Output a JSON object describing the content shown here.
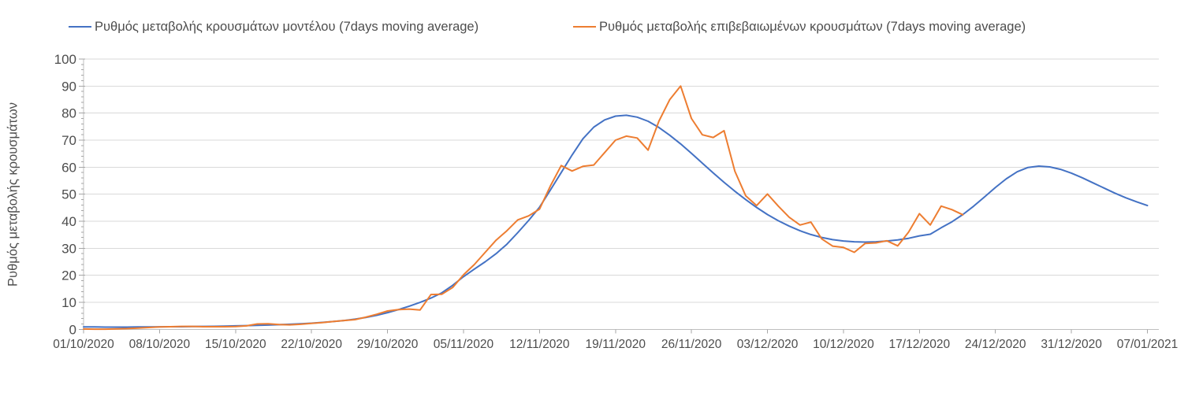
{
  "chart_data": {
    "type": "line",
    "title": "",
    "xlabel": "",
    "ylabel": "Ρυθμός μεταβολής κρουσμάτων",
    "ylim": [
      0,
      100
    ],
    "y_tick_step": 10,
    "y_minor_tick_step": 2,
    "grid": true,
    "legend_position": "top",
    "x_sampling": "daily",
    "x_start_date": "01/10/2020",
    "x_end_date": "07/01/2021",
    "x_tick_every_days": 7,
    "x_tick_labels": [
      "01/10/2020",
      "08/10/2020",
      "15/10/2020",
      "22/10/2020",
      "29/10/2020",
      "05/11/2020",
      "12/11/2020",
      "19/11/2020",
      "26/11/2020",
      "03/12/2020",
      "10/12/2020",
      "17/12/2020",
      "24/12/2020",
      "31/12/2020",
      "07/01/2021"
    ],
    "colors": {
      "gridline": "#d9d9d9",
      "axis": "#bfbfbf",
      "tick": "#a6a6a6",
      "label_text": "#4d4d4d"
    },
    "series": [
      {
        "name": "Ρυθμός μεταβολής κρουσμάτων μοντέλου (7days moving average)",
        "color": "#4472c4",
        "values": [
          0.9,
          0.9,
          0.85,
          0.85,
          0.85,
          0.9,
          0.9,
          0.95,
          1.0,
          1.0,
          1.05,
          1.1,
          1.15,
          1.2,
          1.3,
          1.4,
          1.5,
          1.6,
          1.75,
          1.9,
          2.1,
          2.3,
          2.6,
          2.9,
          3.3,
          3.8,
          4.4,
          5.2,
          6.2,
          7.3,
          8.6,
          10.0,
          11.6,
          13.5,
          16.3,
          19.5,
          22.3,
          25.0,
          28.0,
          31.5,
          35.8,
          40.3,
          45.2,
          51.5,
          58.0,
          64.5,
          70.5,
          74.8,
          77.5,
          78.9,
          79.2,
          78.5,
          77.0,
          74.7,
          71.8,
          68.6,
          65.1,
          61.5,
          57.9,
          54.4,
          51.1,
          48.0,
          45.1,
          42.5,
          40.2,
          38.2,
          36.5,
          35.1,
          34.0,
          33.2,
          32.7,
          32.4,
          32.3,
          32.4,
          32.7,
          33.1,
          33.7,
          34.6,
          35.2,
          37.6,
          39.8,
          42.5,
          45.6,
          49.0,
          52.5,
          55.7,
          58.3,
          59.9,
          60.4,
          60.1,
          59.2,
          57.8,
          56.1,
          54.2,
          52.3,
          50.4,
          48.7,
          47.2,
          45.8
        ]
      },
      {
        "name": "Ρυθμός μεταβολής επιβεβαιωμένων κρουσμάτων (7days moving average)",
        "color": "#ed7d31",
        "values": [
          0.15,
          0.1,
          0.1,
          0.2,
          0.3,
          0.5,
          0.7,
          0.9,
          1.0,
          1.1,
          1.1,
          1.0,
          1.0,
          1.0,
          1.05,
          1.3,
          2.0,
          2.1,
          1.8,
          1.7,
          1.9,
          2.2,
          2.5,
          2.9,
          3.3,
          3.6,
          4.5,
          5.6,
          6.8,
          7.3,
          7.5,
          7.2,
          12.9,
          13.0,
          15.5,
          20.2,
          24.0,
          28.5,
          33.0,
          36.5,
          40.5,
          42.0,
          44.5,
          53.0,
          60.6,
          58.6,
          60.3,
          60.8,
          65.4,
          70.0,
          71.5,
          70.8,
          66.3,
          77.0,
          85.0,
          90.0,
          78.0,
          72.0,
          71.0,
          73.5,
          58.5,
          49.4,
          45.8,
          50.1,
          45.6,
          41.5,
          38.6,
          39.7,
          33.5,
          30.8,
          30.3,
          28.5,
          31.8,
          32.0,
          32.8,
          30.9,
          36.0,
          42.8,
          38.6,
          45.6,
          44.3,
          42.4
        ]
      }
    ]
  }
}
